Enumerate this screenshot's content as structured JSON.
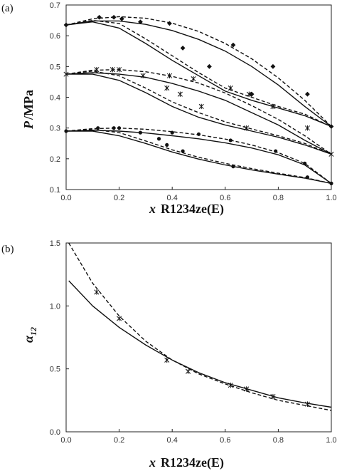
{
  "chart_data": [
    {
      "panel_label": "(a)",
      "type": "scatter",
      "xlabel": {
        "italic": "x",
        "rest": "R1234ze(E)"
      },
      "ylabel": {
        "italic": "P",
        "rest": "/MPa"
      },
      "xlim": [
        0,
        1.0
      ],
      "ylim": [
        0.1,
        0.7
      ],
      "xticks": [
        "0.0",
        "0.2",
        "0.4",
        "0.6",
        "0.8",
        "1.0"
      ],
      "yticks": [
        "0.1",
        "0.2",
        "0.3",
        "0.4",
        "0.5",
        "0.6",
        "0.7"
      ],
      "series": [
        {
          "marker": "diamond",
          "points": [
            [
              0,
              0.635
            ],
            [
              0.125,
              0.66
            ],
            [
              0.18,
              0.66
            ],
            [
              0.21,
              0.655
            ],
            [
              0.28,
              0.645
            ],
            [
              0.39,
              0.64
            ],
            [
              0.63,
              0.57
            ],
            [
              0.78,
              0.5
            ],
            [
              0.91,
              0.41
            ],
            [
              1.0,
              0.305
            ],
            [
              0.44,
              0.56
            ],
            [
              0.54,
              0.5
            ],
            [
              0.7,
              0.41
            ]
          ]
        },
        {
          "marker": "cross",
          "points": [
            [
              0,
              0.475
            ],
            [
              0.115,
              0.49
            ],
            [
              0.175,
              0.49
            ],
            [
              0.2,
              0.49
            ],
            [
              0.29,
              0.47
            ],
            [
              0.39,
              0.47
            ],
            [
              0.48,
              0.46
            ],
            [
              0.62,
              0.43
            ],
            [
              0.69,
              0.41
            ],
            [
              0.78,
              0.37
            ],
            [
              0.91,
              0.3
            ],
            [
              1.0,
              0.215
            ],
            [
              0.38,
              0.43
            ],
            [
              0.43,
              0.41
            ],
            [
              0.51,
              0.37
            ],
            [
              0.68,
              0.3
            ]
          ]
        },
        {
          "marker": "circle",
          "points": [
            [
              0,
              0.29
            ],
            [
              0.12,
              0.3
            ],
            [
              0.18,
              0.3
            ],
            [
              0.2,
              0.3
            ],
            [
              0.28,
              0.285
            ],
            [
              0.4,
              0.285
            ],
            [
              0.5,
              0.28
            ],
            [
              0.62,
              0.26
            ],
            [
              0.79,
              0.225
            ],
            [
              0.9,
              0.185
            ],
            [
              1.0,
              0.12
            ],
            [
              0.35,
              0.265
            ],
            [
              0.38,
              0.245
            ],
            [
              0.44,
              0.225
            ],
            [
              0.63,
              0.175
            ],
            [
              0.91,
              0.14
            ]
          ]
        }
      ],
      "curves": [
        {
          "style": "solid",
          "x": [
            0,
            0.1,
            0.2,
            0.3,
            0.4,
            0.5,
            0.6,
            0.7,
            0.8,
            0.9,
            1.0
          ],
          "y": [
            0.635,
            0.648,
            0.648,
            0.637,
            0.617,
            0.588,
            0.55,
            0.5,
            0.44,
            0.37,
            0.305
          ]
        },
        {
          "style": "dashed",
          "x": [
            0,
            0.1,
            0.2,
            0.3,
            0.4,
            0.5,
            0.6,
            0.7,
            0.8,
            0.9,
            1.0
          ],
          "y": [
            0.635,
            0.655,
            0.662,
            0.657,
            0.641,
            0.614,
            0.575,
            0.525,
            0.463,
            0.39,
            0.305
          ]
        },
        {
          "style": "solid",
          "x": [
            0,
            0.1,
            0.2,
            0.3,
            0.4,
            0.5,
            0.6,
            0.7,
            0.8,
            0.9,
            1.0
          ],
          "y": [
            0.635,
            0.645,
            0.625,
            0.575,
            0.52,
            0.47,
            0.42,
            0.39,
            0.365,
            0.34,
            0.305
          ]
        },
        {
          "style": "dashed",
          "x": [
            0,
            0.1,
            0.2,
            0.3,
            0.4,
            0.5,
            0.6,
            0.7,
            0.8,
            0.9,
            1.0
          ],
          "y": [
            0.635,
            0.65,
            0.64,
            0.59,
            0.535,
            0.48,
            0.43,
            0.4,
            0.37,
            0.345,
            0.305
          ]
        },
        {
          "style": "solid",
          "x": [
            0,
            0.1,
            0.2,
            0.3,
            0.4,
            0.5,
            0.6,
            0.7,
            0.8,
            0.9,
            1.0
          ],
          "y": [
            0.475,
            0.48,
            0.475,
            0.465,
            0.445,
            0.42,
            0.39,
            0.35,
            0.31,
            0.26,
            0.215
          ]
        },
        {
          "style": "dashed",
          "x": [
            0,
            0.1,
            0.2,
            0.3,
            0.4,
            0.5,
            0.6,
            0.7,
            0.8,
            0.9,
            1.0
          ],
          "y": [
            0.475,
            0.488,
            0.49,
            0.483,
            0.468,
            0.446,
            0.414,
            0.373,
            0.328,
            0.275,
            0.215
          ]
        },
        {
          "style": "solid",
          "x": [
            0,
            0.1,
            0.2,
            0.3,
            0.4,
            0.5,
            0.6,
            0.7,
            0.8,
            0.9,
            1.0
          ],
          "y": [
            0.475,
            0.475,
            0.455,
            0.415,
            0.37,
            0.335,
            0.31,
            0.29,
            0.27,
            0.245,
            0.215
          ]
        },
        {
          "style": "dashed",
          "x": [
            0,
            0.1,
            0.2,
            0.3,
            0.4,
            0.5,
            0.6,
            0.7,
            0.8,
            0.9,
            1.0
          ],
          "y": [
            0.475,
            0.485,
            0.47,
            0.43,
            0.385,
            0.35,
            0.32,
            0.297,
            0.275,
            0.25,
            0.215
          ]
        },
        {
          "style": "solid",
          "x": [
            0,
            0.1,
            0.2,
            0.3,
            0.4,
            0.5,
            0.6,
            0.7,
            0.8,
            0.9,
            1.0
          ],
          "y": [
            0.29,
            0.293,
            0.29,
            0.284,
            0.275,
            0.265,
            0.252,
            0.235,
            0.213,
            0.18,
            0.12
          ]
        },
        {
          "style": "dashed",
          "x": [
            0,
            0.1,
            0.2,
            0.3,
            0.4,
            0.5,
            0.6,
            0.7,
            0.8,
            0.9,
            1.0
          ],
          "y": [
            0.29,
            0.298,
            0.3,
            0.296,
            0.288,
            0.278,
            0.264,
            0.245,
            0.22,
            0.185,
            0.12
          ]
        },
        {
          "style": "solid",
          "x": [
            0,
            0.1,
            0.2,
            0.3,
            0.4,
            0.5,
            0.6,
            0.7,
            0.8,
            0.9,
            1.0
          ],
          "y": [
            0.29,
            0.29,
            0.275,
            0.25,
            0.222,
            0.199,
            0.18,
            0.164,
            0.15,
            0.137,
            0.12
          ]
        },
        {
          "style": "dashed",
          "x": [
            0,
            0.1,
            0.2,
            0.3,
            0.4,
            0.5,
            0.6,
            0.7,
            0.8,
            0.9,
            1.0
          ],
          "y": [
            0.29,
            0.295,
            0.285,
            0.258,
            0.229,
            0.205,
            0.185,
            0.168,
            0.153,
            0.139,
            0.12
          ]
        }
      ]
    },
    {
      "panel_label": "(b)",
      "type": "scatter",
      "xlabel": {
        "italic": "x",
        "rest": "R1234ze(E)"
      },
      "ylabel": {
        "italic": "α",
        "sub": "12"
      },
      "xlim": [
        0,
        1.0
      ],
      "ylim": [
        0,
        1.5
      ],
      "xticks": [
        "0.0",
        "0.2",
        "0.4",
        "0.6",
        "0.8",
        "1.0"
      ],
      "yticks": [
        "0.0",
        "0.5",
        "1.0",
        "1.5"
      ],
      "series": [
        {
          "marker": "cross",
          "points": [
            [
              0.115,
              1.11
            ],
            [
              0.2,
              0.9
            ],
            [
              0.38,
              0.57
            ],
            [
              0.46,
              0.48
            ],
            [
              0.62,
              0.37
            ],
            [
              0.68,
              0.34
            ],
            [
              0.78,
              0.28
            ],
            [
              0.91,
              0.22
            ]
          ]
        }
      ],
      "curves": [
        {
          "style": "solid",
          "x": [
            0.01,
            0.1,
            0.2,
            0.3,
            0.4,
            0.5,
            0.6,
            0.7,
            0.8,
            0.9,
            1.0
          ],
          "y": [
            1.2,
            1.0,
            0.83,
            0.69,
            0.57,
            0.47,
            0.39,
            0.33,
            0.27,
            0.23,
            0.195
          ]
        },
        {
          "style": "dashed",
          "x": [
            0.01,
            0.1,
            0.2,
            0.3,
            0.4,
            0.5,
            0.6,
            0.7,
            0.8,
            0.9,
            1.0
          ],
          "y": [
            1.5,
            1.18,
            0.92,
            0.72,
            0.57,
            0.46,
            0.38,
            0.31,
            0.25,
            0.21,
            0.17
          ]
        }
      ]
    }
  ]
}
